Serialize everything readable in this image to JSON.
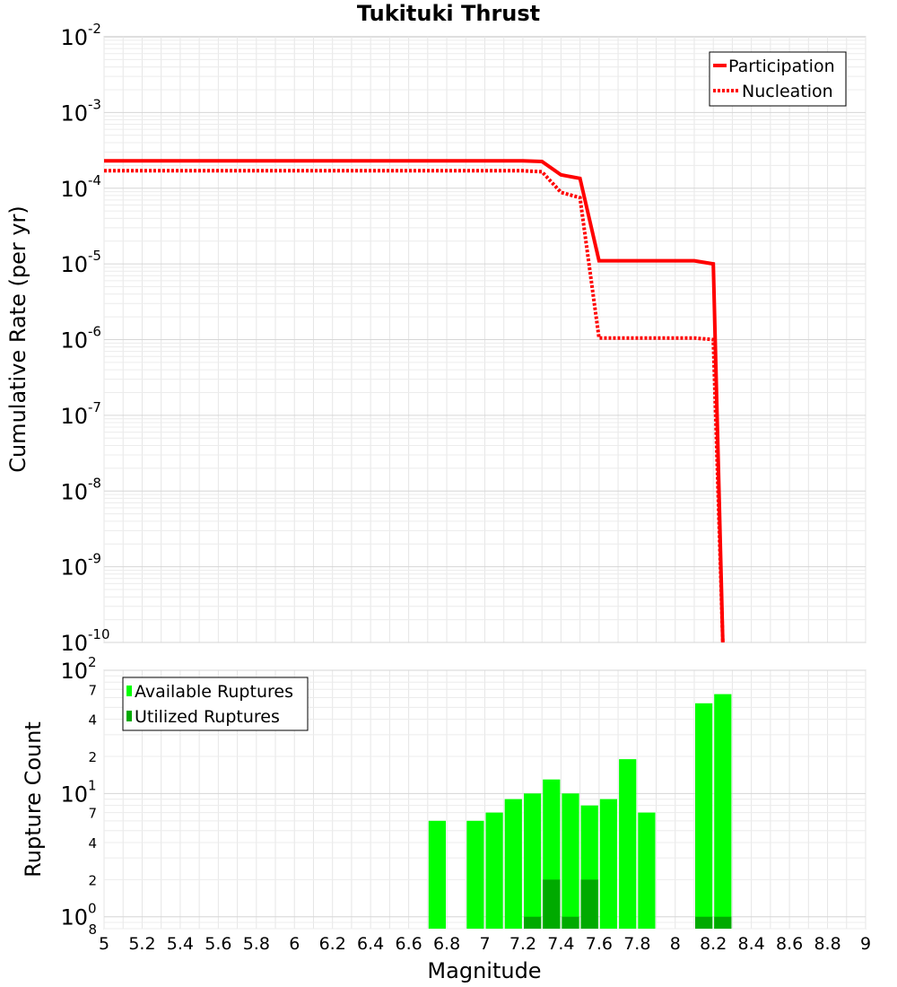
{
  "chart_data": [
    {
      "type": "line",
      "title": "Tukituki Thrust",
      "ylabel": "Cumulative Rate (per yr)",
      "yscale": "log",
      "xlim": [
        5,
        9
      ],
      "ylim": [
        1e-10,
        0.01
      ],
      "grid": true,
      "legend_position": "top-right",
      "y_tick_mantissa": "10",
      "y_tick_exponents": [
        "-2",
        "-3",
        "-4",
        "-5",
        "-6",
        "-7",
        "-8",
        "-9",
        "-10"
      ],
      "series": [
        {
          "name": "Participation",
          "style": "solid",
          "color": "#ff0000",
          "x": [
            5.0,
            7.2,
            7.3,
            7.4,
            7.5,
            7.6,
            7.7,
            7.8,
            7.9,
            8.0,
            8.1,
            8.2,
            8.25
          ],
          "y": [
            0.00023,
            0.00023,
            0.000225,
            0.00015,
            0.000135,
            1.1e-05,
            1.1e-05,
            1.1e-05,
            1.1e-05,
            1.1e-05,
            1.1e-05,
            1e-05,
            1e-10
          ]
        },
        {
          "name": "Nucleation",
          "style": "dotted",
          "color": "#ff0000",
          "x": [
            5.0,
            7.2,
            7.3,
            7.4,
            7.5,
            7.6,
            7.7,
            7.8,
            7.9,
            8.0,
            8.1,
            8.2,
            8.25
          ],
          "y": [
            0.00017,
            0.00017,
            0.000165,
            8.8e-05,
            7.5e-05,
            1.05e-06,
            1.05e-06,
            1.05e-06,
            1.05e-06,
            1.05e-06,
            1.05e-06,
            1e-06,
            1e-10
          ]
        }
      ]
    },
    {
      "type": "bar",
      "xlabel": "Magnitude",
      "ylabel": "Rupture Count",
      "yscale": "log",
      "xlim": [
        5,
        9
      ],
      "ylim": [
        0.8,
        100
      ],
      "grid": true,
      "legend_position": "top-left",
      "x_tick_labels": [
        "5",
        "5.2",
        "5.4",
        "5.6",
        "5.8",
        "6",
        "6.2",
        "6.4",
        "6.6",
        "6.8",
        "7",
        "7.2",
        "7.4",
        "7.6",
        "7.8",
        "8",
        "8.2",
        "8.4",
        "8.6",
        "8.8",
        "9"
      ],
      "y_major_ticks": [
        {
          "mantissa": "10",
          "exp": "2"
        },
        {
          "mantissa": "10",
          "exp": "1"
        },
        {
          "mantissa": "10",
          "exp": "0"
        }
      ],
      "y_minor_labels": [
        "7",
        "4",
        "2",
        "7",
        "4",
        "2",
        "8"
      ],
      "series": [
        {
          "name": "Available Ruptures",
          "color": "#00ff00",
          "x": [
            6.7,
            6.9,
            7.0,
            7.1,
            7.2,
            7.3,
            7.4,
            7.5,
            7.6,
            7.7,
            7.8,
            8.1,
            8.2
          ],
          "values": [
            6,
            6,
            7,
            9,
            10,
            13,
            10,
            8,
            9,
            19,
            7,
            54,
            64
          ]
        },
        {
          "name": "Utilized Ruptures",
          "color": "#00aa00",
          "x": [
            7.2,
            7.3,
            7.4,
            7.5,
            8.1,
            8.2
          ],
          "values": [
            1,
            2,
            1,
            2,
            1,
            1
          ]
        }
      ]
    }
  ]
}
